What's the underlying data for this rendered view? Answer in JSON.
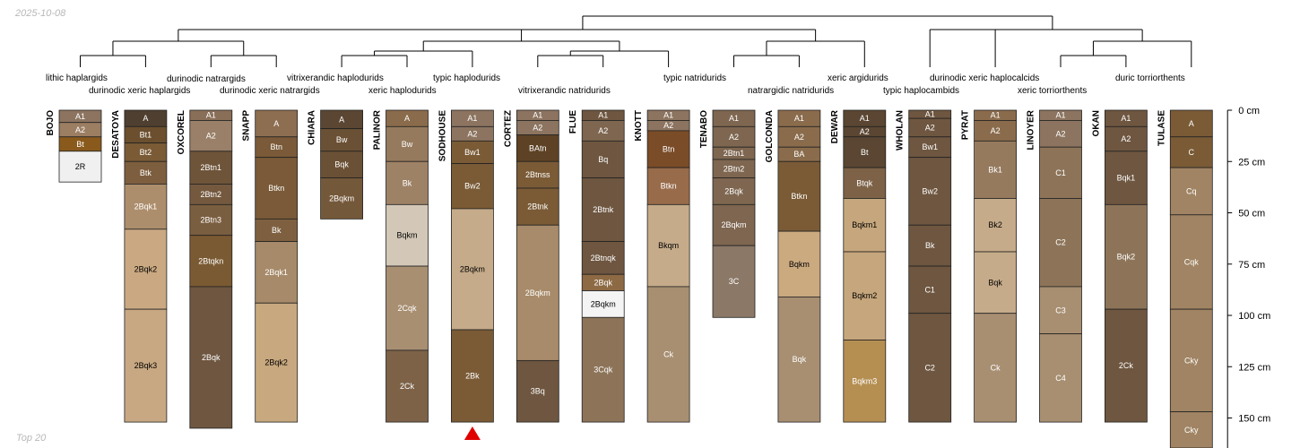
{
  "date_label": "2025-10-08",
  "footer_label": "Top 20",
  "colors": {
    "tree": "#000000",
    "marker": "#e00000",
    "border": "#222222"
  },
  "depth_axis": {
    "max_cm": 160,
    "ticks": [
      {
        "cm": 0,
        "label": "0 cm"
      },
      {
        "cm": 25,
        "label": "25 cm"
      },
      {
        "cm": 50,
        "label": "50 cm"
      },
      {
        "cm": 75,
        "label": "75 cm"
      },
      {
        "cm": 100,
        "label": "100 cm"
      },
      {
        "cm": 125,
        "label": "125 cm"
      },
      {
        "cm": 150,
        "label": "150 cm"
      }
    ]
  },
  "marker_profile": "SODHOUSE",
  "taxa": [
    "lithic haplargids",
    "durinodic xeric haplargids",
    "durinodic natrargids",
    "durinodic xeric natrargids",
    "vitrixerandic haplodurids",
    "xeric haplodurids",
    "typic haplodurids",
    "vitrixerandic natridurids",
    "typic natridurids",
    "natrargidic natridurids",
    "xeric argidurids",
    "typic haplocambids",
    "durinodic xeric haplocalcids",
    "xeric torriorthents",
    "duric torriorthents"
  ],
  "profiles": [
    {
      "name": "BOJO",
      "horizons": [
        {
          "n": "A1",
          "t": 0,
          "b": 6,
          "c": "#8c7460"
        },
        {
          "n": "A2",
          "t": 6,
          "b": 13,
          "c": "#9c7e63"
        },
        {
          "n": "Bt",
          "t": 13,
          "b": 20,
          "c": "#8a5a1c"
        },
        {
          "n": "2R",
          "t": 20,
          "b": 35,
          "c": "#f0f0f0"
        }
      ]
    },
    {
      "name": "DESATOYA",
      "horizons": [
        {
          "n": "A",
          "t": 0,
          "b": 8,
          "c": "#4f3f30"
        },
        {
          "n": "Bt1",
          "t": 8,
          "b": 16,
          "c": "#6b4f2e"
        },
        {
          "n": "Bt2",
          "t": 16,
          "b": 25,
          "c": "#7a5b36"
        },
        {
          "n": "Btk",
          "t": 25,
          "b": 36,
          "c": "#7d5e3e"
        },
        {
          "n": "2Bqk1",
          "t": 36,
          "b": 58,
          "c": "#ad8e6c"
        },
        {
          "n": "2Bqk2",
          "t": 58,
          "b": 97,
          "c": "#caa982"
        },
        {
          "n": "2Bqk3",
          "t": 97,
          "b": 152,
          "c": "#c8a882"
        }
      ]
    },
    {
      "name": "OXCOREL",
      "horizons": [
        {
          "n": "A1",
          "t": 0,
          "b": 5,
          "c": "#8a6f58"
        },
        {
          "n": "A2",
          "t": 5,
          "b": 20,
          "c": "#9a8068"
        },
        {
          "n": "2Btn1",
          "t": 20,
          "b": 36,
          "c": "#6e5439"
        },
        {
          "n": "2Btn2",
          "t": 36,
          "b": 46,
          "c": "#74593f"
        },
        {
          "n": "2Btn3",
          "t": 46,
          "b": 61,
          "c": "#7a5e40"
        },
        {
          "n": "2Btqkn",
          "t": 61,
          "b": 86,
          "c": "#7a5a32"
        },
        {
          "n": "2Bqk",
          "t": 86,
          "b": 155,
          "c": "#6e5640"
        }
      ]
    },
    {
      "name": "SNAPP",
      "horizons": [
        {
          "n": "A",
          "t": 0,
          "b": 13,
          "c": "#8d6e50"
        },
        {
          "n": "Btn",
          "t": 13,
          "b": 23,
          "c": "#7a5a38"
        },
        {
          "n": "Btkn",
          "t": 23,
          "b": 53,
          "c": "#7a5a38"
        },
        {
          "n": "Bk",
          "t": 53,
          "b": 64,
          "c": "#7e6040"
        },
        {
          "n": "2Bqk1",
          "t": 64,
          "b": 94,
          "c": "#a68a69"
        },
        {
          "n": "2Bqk2",
          "t": 94,
          "b": 152,
          "c": "#c8a87e"
        }
      ]
    },
    {
      "name": "CHIARA",
      "horizons": [
        {
          "n": "A",
          "t": 0,
          "b": 9,
          "c": "#5a4632"
        },
        {
          "n": "Bw",
          "t": 9,
          "b": 20,
          "c": "#6a5035"
        },
        {
          "n": "Bqk",
          "t": 20,
          "b": 33,
          "c": "#6a5035"
        },
        {
          "n": "2Bqkm",
          "t": 33,
          "b": 53,
          "c": "#74583a"
        }
      ]
    },
    {
      "name": "PALINOR",
      "horizons": [
        {
          "n": "A",
          "t": 0,
          "b": 8,
          "c": "#8a6c4c"
        },
        {
          "n": "Bw",
          "t": 8,
          "b": 25,
          "c": "#967a5e"
        },
        {
          "n": "Bk",
          "t": 25,
          "b": 46,
          "c": "#9e8266"
        },
        {
          "n": "Bqkm",
          "t": 46,
          "b": 76,
          "c": "#d3c8b8"
        },
        {
          "n": "2Cqk",
          "t": 76,
          "b": 117,
          "c": "#a88f72"
        },
        {
          "n": "2Ck",
          "t": 117,
          "b": 152,
          "c": "#7d6248"
        }
      ]
    },
    {
      "name": "SODHOUSE",
      "horizons": [
        {
          "n": "A1",
          "t": 0,
          "b": 8,
          "c": "#8c7460"
        },
        {
          "n": "A2",
          "t": 8,
          "b": 15,
          "c": "#8c7460"
        },
        {
          "n": "Bw1",
          "t": 15,
          "b": 26,
          "c": "#7a5b36"
        },
        {
          "n": "Bw2",
          "t": 26,
          "b": 48,
          "c": "#7a5b36"
        },
        {
          "n": "2Bqkm",
          "t": 48,
          "b": 107,
          "c": "#c6ab8a"
        },
        {
          "n": "2Bk",
          "t": 107,
          "b": 152,
          "c": "#7a5b36"
        }
      ]
    },
    {
      "name": "CORTEZ",
      "horizons": [
        {
          "n": "A1",
          "t": 0,
          "b": 5,
          "c": "#8c7460"
        },
        {
          "n": "A2",
          "t": 5,
          "b": 12,
          "c": "#8c7460"
        },
        {
          "n": "BAtn",
          "t": 12,
          "b": 25,
          "c": "#5e4225"
        },
        {
          "n": "2Btnss",
          "t": 25,
          "b": 38,
          "c": "#7a5b36"
        },
        {
          "n": "2Btnk",
          "t": 38,
          "b": 56,
          "c": "#7a5b36"
        },
        {
          "n": "2Bqkm",
          "t": 56,
          "b": 122,
          "c": "#a88b6a"
        },
        {
          "n": "3Bq",
          "t": 122,
          "b": 152,
          "c": "#6e5640"
        }
      ]
    },
    {
      "name": "FLUE",
      "horizons": [
        {
          "n": "A1",
          "t": 0,
          "b": 5,
          "c": "#6e5640"
        },
        {
          "n": "A2",
          "t": 5,
          "b": 15,
          "c": "#7e6650"
        },
        {
          "n": "Bq",
          "t": 15,
          "b": 33,
          "c": "#6e5640"
        },
        {
          "n": "2Btnk",
          "t": 33,
          "b": 64,
          "c": "#6e5640"
        },
        {
          "n": "2Btnqk",
          "t": 64,
          "b": 80,
          "c": "#6e5640"
        },
        {
          "n": "2Bqk",
          "t": 80,
          "b": 88,
          "c": "#8d6a44"
        },
        {
          "n": "2Bqkm",
          "t": 88,
          "b": 101,
          "c": "#f4f4f4"
        },
        {
          "n": "3Cqk",
          "t": 101,
          "b": 152,
          "c": "#8d7459"
        }
      ]
    },
    {
      "name": "KNOTT",
      "horizons": [
        {
          "n": "A1",
          "t": 0,
          "b": 5,
          "c": "#8c7460"
        },
        {
          "n": "A2",
          "t": 5,
          "b": 10,
          "c": "#8c7460"
        },
        {
          "n": "Btn",
          "t": 10,
          "b": 28,
          "c": "#7a4c28"
        },
        {
          "n": "Btkn",
          "t": 28,
          "b": 46,
          "c": "#986b4a"
        },
        {
          "n": "Bkqm",
          "t": 46,
          "b": 86,
          "c": "#c6ab8a"
        },
        {
          "n": "Ck",
          "t": 86,
          "b": 152,
          "c": "#a88f72"
        }
      ]
    },
    {
      "name": "TENABO",
      "horizons": [
        {
          "n": "A1",
          "t": 0,
          "b": 8,
          "c": "#7e6650"
        },
        {
          "n": "A2",
          "t": 8,
          "b": 18,
          "c": "#7e6650"
        },
        {
          "n": "2Btn1",
          "t": 18,
          "b": 24,
          "c": "#7e6650"
        },
        {
          "n": "2Btn2",
          "t": 24,
          "b": 33,
          "c": "#7e6650"
        },
        {
          "n": "2Bqk",
          "t": 33,
          "b": 46,
          "c": "#7e6650"
        },
        {
          "n": "2Bqkm",
          "t": 46,
          "b": 66,
          "c": "#7e6650"
        },
        {
          "n": "3C",
          "t": 66,
          "b": 101,
          "c": "#8b7867"
        }
      ]
    },
    {
      "name": "GOLCONDA",
      "horizons": [
        {
          "n": "A1",
          "t": 0,
          "b": 8,
          "c": "#8a6c4c"
        },
        {
          "n": "A2",
          "t": 8,
          "b": 18,
          "c": "#8a6c4c"
        },
        {
          "n": "BA",
          "t": 18,
          "b": 25,
          "c": "#8a6c4c"
        },
        {
          "n": "Btkn",
          "t": 25,
          "b": 59,
          "c": "#7a5b36"
        },
        {
          "n": "Bqkm",
          "t": 59,
          "b": 91,
          "c": "#cbaa80"
        },
        {
          "n": "Bqk",
          "t": 91,
          "b": 152,
          "c": "#a88f72"
        }
      ]
    },
    {
      "name": "DEWAR",
      "horizons": [
        {
          "n": "A1",
          "t": 0,
          "b": 8,
          "c": "#5a4632"
        },
        {
          "n": "A2",
          "t": 8,
          "b": 13,
          "c": "#5a4632"
        },
        {
          "n": "Bt",
          "t": 13,
          "b": 28,
          "c": "#5a4632"
        },
        {
          "n": "Btqk",
          "t": 28,
          "b": 43,
          "c": "#7d6248"
        },
        {
          "n": "Bqkm1",
          "t": 43,
          "b": 69,
          "c": "#c6a67c"
        },
        {
          "n": "Bqkm2",
          "t": 69,
          "b": 112,
          "c": "#c6a67c"
        },
        {
          "n": "Bqkm3",
          "t": 112,
          "b": 152,
          "c": "#b58f52"
        }
      ]
    },
    {
      "name": "WHOLAN",
      "horizons": [
        {
          "n": "A1",
          "t": 0,
          "b": 4,
          "c": "#6e5640"
        },
        {
          "n": "A2",
          "t": 4,
          "b": 13,
          "c": "#6e5640"
        },
        {
          "n": "Bw1",
          "t": 13,
          "b": 23,
          "c": "#6e5640"
        },
        {
          "n": "Bw2",
          "t": 23,
          "b": 56,
          "c": "#6e5640"
        },
        {
          "n": "Bk",
          "t": 56,
          "b": 76,
          "c": "#6e5640"
        },
        {
          "n": "C1",
          "t": 76,
          "b": 99,
          "c": "#6e5640"
        },
        {
          "n": "C2",
          "t": 99,
          "b": 152,
          "c": "#6e5640"
        }
      ]
    },
    {
      "name": "PYRAT",
      "horizons": [
        {
          "n": "A1",
          "t": 0,
          "b": 5,
          "c": "#8a6c4c"
        },
        {
          "n": "A2",
          "t": 5,
          "b": 15,
          "c": "#8a6c4c"
        },
        {
          "n": "Bk1",
          "t": 15,
          "b": 43,
          "c": "#967a5e"
        },
        {
          "n": "Bk2",
          "t": 43,
          "b": 69,
          "c": "#c6ab8a"
        },
        {
          "n": "Bqk",
          "t": 69,
          "b": 99,
          "c": "#c6ab8a"
        },
        {
          "n": "Ck",
          "t": 99,
          "b": 152,
          "c": "#a88f72"
        }
      ]
    },
    {
      "name": "LINOYER",
      "horizons": [
        {
          "n": "A1",
          "t": 0,
          "b": 5,
          "c": "#8c7460"
        },
        {
          "n": "A2",
          "t": 5,
          "b": 18,
          "c": "#8c7460"
        },
        {
          "n": "C1",
          "t": 18,
          "b": 43,
          "c": "#8d7459"
        },
        {
          "n": "C2",
          "t": 43,
          "b": 86,
          "c": "#8d7459"
        },
        {
          "n": "C3",
          "t": 86,
          "b": 109,
          "c": "#a88f72"
        },
        {
          "n": "C4",
          "t": 109,
          "b": 152,
          "c": "#a88f72"
        }
      ]
    },
    {
      "name": "OKAN",
      "horizons": [
        {
          "n": "A1",
          "t": 0,
          "b": 8,
          "c": "#6e5640"
        },
        {
          "n": "A2",
          "t": 8,
          "b": 20,
          "c": "#6e5640"
        },
        {
          "n": "Bqk1",
          "t": 20,
          "b": 46,
          "c": "#6e5640"
        },
        {
          "n": "Bqk2",
          "t": 46,
          "b": 97,
          "c": "#8d7459"
        },
        {
          "n": "2Ck",
          "t": 97,
          "b": 152,
          "c": "#6e5640"
        }
      ]
    },
    {
      "name": "TULASE",
      "horizons": [
        {
          "n": "A",
          "t": 0,
          "b": 13,
          "c": "#7a5b36"
        },
        {
          "n": "C",
          "t": 13,
          "b": 28,
          "c": "#7a5b36"
        },
        {
          "n": "Cq",
          "t": 28,
          "b": 51,
          "c": "#a08463"
        },
        {
          "n": "Cqk",
          "t": 51,
          "b": 97,
          "c": "#a08463"
        },
        {
          "n": "Cky",
          "t": 97,
          "b": 147,
          "c": "#a08463"
        },
        {
          "n": "Cky",
          "t": 147,
          "b": 168,
          "c": "#a08463"
        }
      ]
    }
  ]
}
